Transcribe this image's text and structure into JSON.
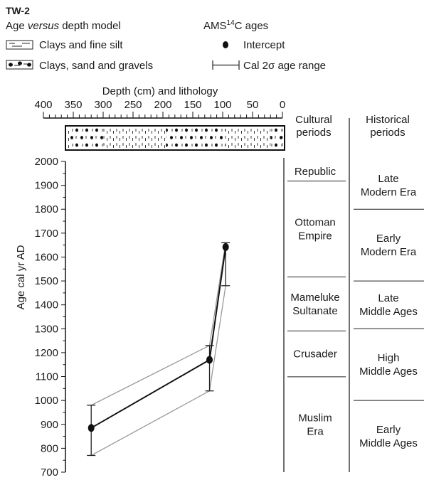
{
  "header": {
    "site": "TW-2",
    "model_prefix": "Age ",
    "model_italic": "versus",
    "model_suffix": " depth model",
    "ams_prefix": "AMS",
    "ams_sup": "14",
    "ams_suffix": "C ages"
  },
  "legend": {
    "lith_fine": "Clays and fine silt",
    "lith_coarse": "Clays, sand and gravels",
    "intercept": "Intercept",
    "range_prefix": "Cal 2",
    "range_sigma": "σ",
    "range_suffix": " age range"
  },
  "chart_data": {
    "type": "line",
    "title": "",
    "xlabel": "Depth (cm) and lithology",
    "ylabel": "Age cal yr AD",
    "xlim": [
      400,
      0
    ],
    "ylim": [
      700,
      2000
    ],
    "x_ticks": [
      400,
      350,
      300,
      250,
      200,
      150,
      100,
      50,
      0
    ],
    "y_ticks": [
      700,
      800,
      900,
      1000,
      1100,
      1200,
      1300,
      1400,
      1500,
      1600,
      1700,
      1800,
      1900,
      2000
    ],
    "series": [
      {
        "points": [
          {
            "depth": 320,
            "age": 885,
            "min": 770,
            "max": 980
          },
          {
            "depth": 122,
            "age": 1170,
            "min": 1040,
            "max": 1230
          },
          {
            "depth": 95,
            "age": 1642,
            "min": 1480,
            "max": 1660
          }
        ]
      }
    ],
    "envelope": {
      "upper": [
        [
          320,
          980
        ],
        [
          122,
          1230
        ],
        [
          95,
          1660
        ]
      ],
      "lower": [
        [
          320,
          770
        ],
        [
          122,
          1040
        ],
        [
          95,
          1480
        ]
      ]
    },
    "lithology": {
      "coarse_ranges": [
        [
          355,
          300
        ],
        [
          195,
          95
        ],
        [
          20,
          0
        ]
      ],
      "fine_ranges": [
        [
          300,
          195
        ],
        [
          95,
          20
        ]
      ]
    }
  },
  "periods": {
    "cultural_title_line1": "Cultural",
    "cultural_title_line2": "periods",
    "historical_title_line1": "Historical",
    "historical_title_line2": "periods",
    "cultural": [
      {
        "lines": [
          "Republic"
        ],
        "from": 1918,
        "to": 2000
      },
      {
        "lines": [
          "Ottoman",
          "Empire"
        ],
        "from": 1517,
        "to": 1918
      },
      {
        "lines": [
          "Mameluke",
          "Sultanate"
        ],
        "from": 1291,
        "to": 1517
      },
      {
        "lines": [
          "Crusader"
        ],
        "from": 1099,
        "to": 1291
      },
      {
        "lines": [
          "Muslim",
          "Era"
        ],
        "from": 700,
        "to": 1099
      }
    ],
    "historical": [
      {
        "lines": [
          "Late",
          "Modern Era"
        ],
        "from": 1800,
        "to": 2000
      },
      {
        "lines": [
          "Early",
          "Modern Era"
        ],
        "from": 1500,
        "to": 1800
      },
      {
        "lines": [
          "Late",
          "Middle Ages"
        ],
        "from": 1300,
        "to": 1500
      },
      {
        "lines": [
          "High",
          "Middle Ages"
        ],
        "from": 1000,
        "to": 1300
      },
      {
        "lines": [
          "Early",
          "Middle Ages"
        ],
        "from": 700,
        "to": 1000
      }
    ]
  }
}
